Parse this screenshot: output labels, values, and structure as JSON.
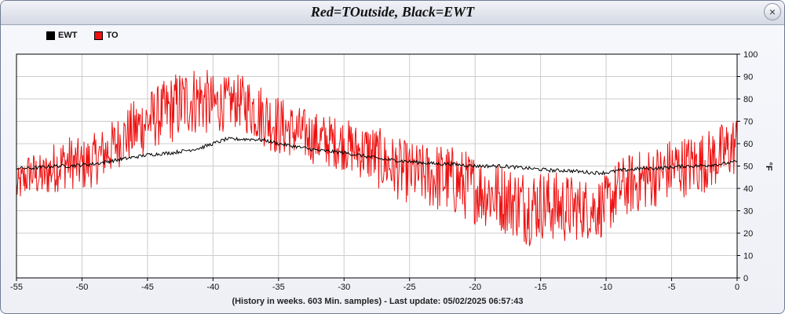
{
  "window": {
    "title": "Red=TOutside, Black=EWT",
    "close_symbol": "×"
  },
  "footer": "(History in weeks. 603 Min. samples) - Last update: 05/02/2025 06:57:43",
  "colors": {
    "EWT": "#000000",
    "TO": "#ee1111",
    "grid": "#cccccc"
  },
  "chart_data": {
    "type": "line",
    "title": "Red=TOutside, Black=EWT",
    "xlabel": "(History in weeks. 603 Min. samples) - Last update: 05/02/2025 06:57:43",
    "ylabel": "°F",
    "xlim": [
      -55,
      0
    ],
    "ylim": [
      0,
      100
    ],
    "xticks": [
      -55,
      -50,
      -45,
      -40,
      -35,
      -30,
      -25,
      -20,
      -15,
      -10,
      -5,
      0
    ],
    "yticks": [
      0,
      10,
      20,
      30,
      40,
      50,
      60,
      70,
      80,
      90,
      100
    ],
    "grid": true,
    "legend_position": "top-left",
    "series": [
      {
        "name": "EWT",
        "color": "#000000",
        "x": [
          -55,
          -54,
          -53,
          -52,
          -51,
          -50,
          -49,
          -48,
          -47,
          -46,
          -45,
          -44,
          -43,
          -42,
          -41,
          -40,
          -39,
          -38,
          -37,
          -36,
          -35,
          -34,
          -33,
          -32,
          -31,
          -30,
          -29,
          -28,
          -27,
          -26,
          -25,
          -24,
          -23,
          -22,
          -21,
          -20,
          -19,
          -18,
          -17,
          -16,
          -15,
          -14,
          -13,
          -12,
          -11,
          -10,
          -9,
          -8,
          -7,
          -6,
          -5,
          -4,
          -3,
          -2,
          -1,
          0
        ],
        "y": [
          49,
          49,
          49.5,
          50,
          50,
          50.5,
          51,
          52,
          53,
          54,
          55,
          55.5,
          56,
          57,
          58,
          60,
          62,
          62,
          62,
          61.5,
          60,
          59,
          58,
          57,
          56.5,
          56,
          55,
          54,
          53,
          52.5,
          52,
          51.5,
          51,
          51,
          50.5,
          50,
          50,
          50,
          49.5,
          49,
          48.5,
          48,
          48,
          47.5,
          47,
          47,
          48,
          48.5,
          49,
          49,
          49.5,
          50,
          50,
          50.5,
          51,
          52
        ]
      },
      {
        "name": "TO",
        "color": "#ee1111",
        "x": [
          -55,
          -54,
          -53,
          -52,
          -51,
          -50,
          -49,
          -48,
          -47,
          -46,
          -45,
          -44,
          -43,
          -42,
          -41,
          -40,
          -39,
          -38,
          -37,
          -36,
          -35,
          -34,
          -33,
          -32,
          -31,
          -30,
          -29,
          -28,
          -27,
          -26,
          -25,
          -24,
          -23,
          -22,
          -21,
          -20,
          -19,
          -18,
          -17,
          -16,
          -15,
          -14,
          -13,
          -12,
          -11,
          -10,
          -9,
          -8,
          -7,
          -6,
          -5,
          -4,
          -3,
          -2,
          -1,
          0
        ],
        "y": [
          40,
          47,
          45,
          50,
          52,
          50,
          53,
          57,
          62,
          66,
          70,
          73,
          76,
          79,
          80,
          77,
          78,
          79,
          76,
          72,
          68,
          66,
          64,
          62,
          61,
          60,
          57,
          56,
          52,
          49,
          47,
          46,
          45,
          44,
          42,
          40,
          38,
          36,
          34,
          32,
          33,
          32,
          31,
          31,
          31,
          32,
          40,
          42,
          44,
          46,
          49,
          50,
          51,
          53,
          56,
          60
        ],
        "noise": [
          8,
          10,
          10,
          12,
          12,
          12,
          12,
          12,
          12,
          14,
          14,
          14,
          16,
          16,
          16,
          14,
          12,
          12,
          14,
          14,
          14,
          12,
          12,
          12,
          12,
          12,
          12,
          14,
          14,
          14,
          14,
          14,
          16,
          16,
          16,
          16,
          16,
          16,
          16,
          18,
          16,
          16,
          16,
          14,
          14,
          14,
          14,
          14,
          14,
          14,
          14,
          14,
          14,
          14,
          14,
          14
        ]
      }
    ]
  }
}
